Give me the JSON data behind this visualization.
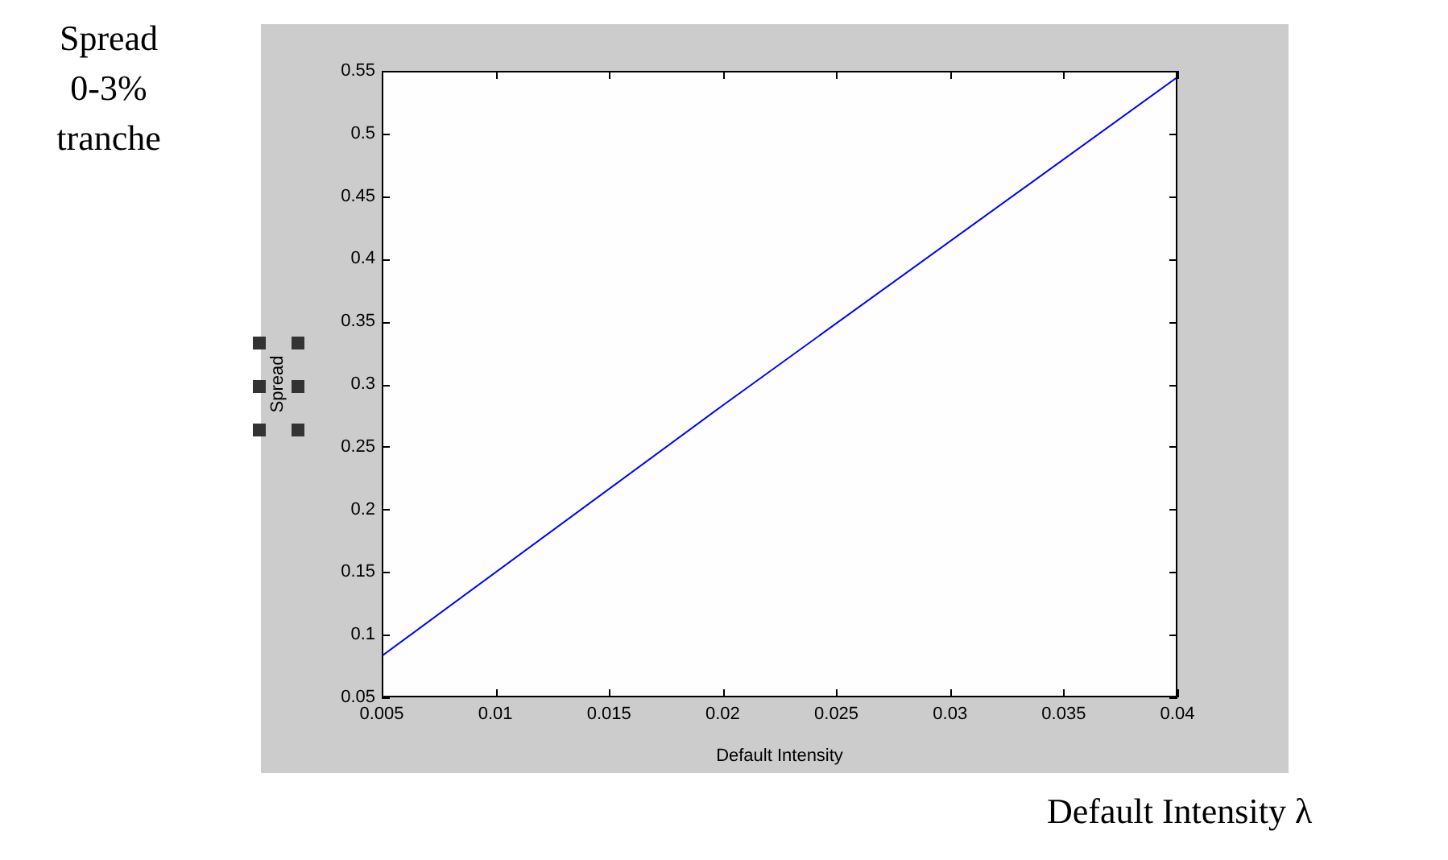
{
  "chart_data": {
    "type": "line",
    "xlabel": "Default Intensity",
    "ylabel": "Spread",
    "annotations": [
      "Spread 0-3% tranche",
      "Default Intensity λ"
    ],
    "x": [
      0.005,
      0.02,
      0.04
    ],
    "series": [
      {
        "color": "#0000ff",
        "values": [
          0.083,
          0.283,
          0.545
        ]
      }
    ],
    "xlim": [
      0.005,
      0.04
    ],
    "xticks": [
      0.005,
      0.01,
      0.015,
      0.02,
      0.025,
      0.03,
      0.035,
      0.04
    ],
    "ylim": [
      0.05,
      0.55
    ],
    "yticks": [
      0.05,
      0.1,
      0.15,
      0.2,
      0.25,
      0.3,
      0.35,
      0.4,
      0.45,
      0.5,
      0.55
    ],
    "legend": false,
    "marker": "none",
    "line_style": "solid"
  }
}
